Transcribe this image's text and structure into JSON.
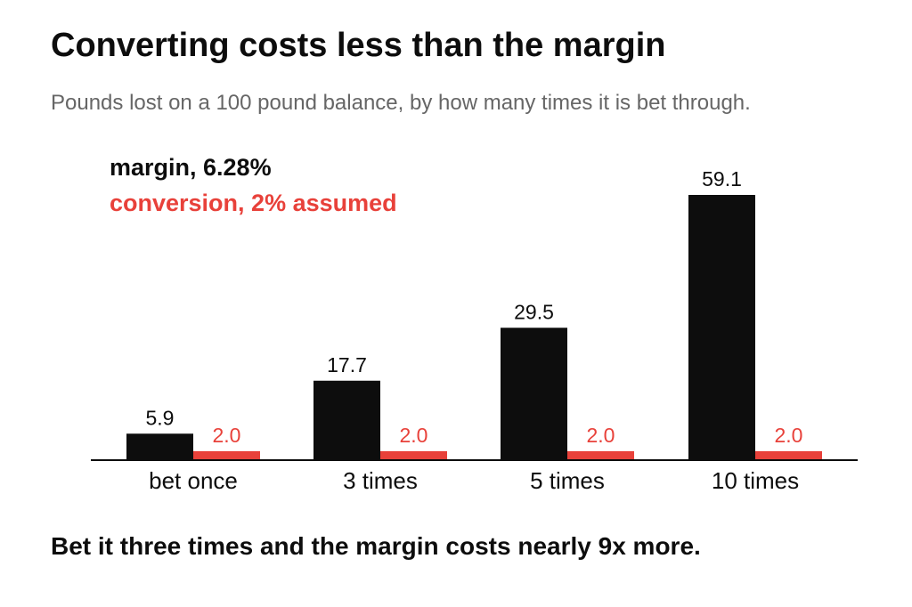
{
  "chart_data": {
    "type": "bar",
    "title": "Converting costs less than the margin",
    "subtitle": "Pounds lost on a 100 pound balance, by how many times it is bet through.",
    "categories": [
      "bet once",
      "3 times",
      "5 times",
      "10 times"
    ],
    "series": [
      {
        "name": "margin, 6.28%",
        "values": [
          5.9,
          17.7,
          29.5,
          59.1
        ],
        "labels": [
          "5.9",
          "17.7",
          "29.5",
          "59.1"
        ],
        "color": "#0d0d0d"
      },
      {
        "name": "conversion, 2% assumed",
        "values": [
          2.0,
          2.0,
          2.0,
          2.0
        ],
        "labels": [
          "2.0",
          "2.0",
          "2.0",
          "2.0"
        ],
        "color": "#e8413a"
      }
    ],
    "ylim": [
      0,
      60
    ],
    "grid": false,
    "legend_position": "top-left",
    "xlabel": "",
    "ylabel": ""
  },
  "footnote": "Bet it three times and the margin costs nearly 9x more."
}
